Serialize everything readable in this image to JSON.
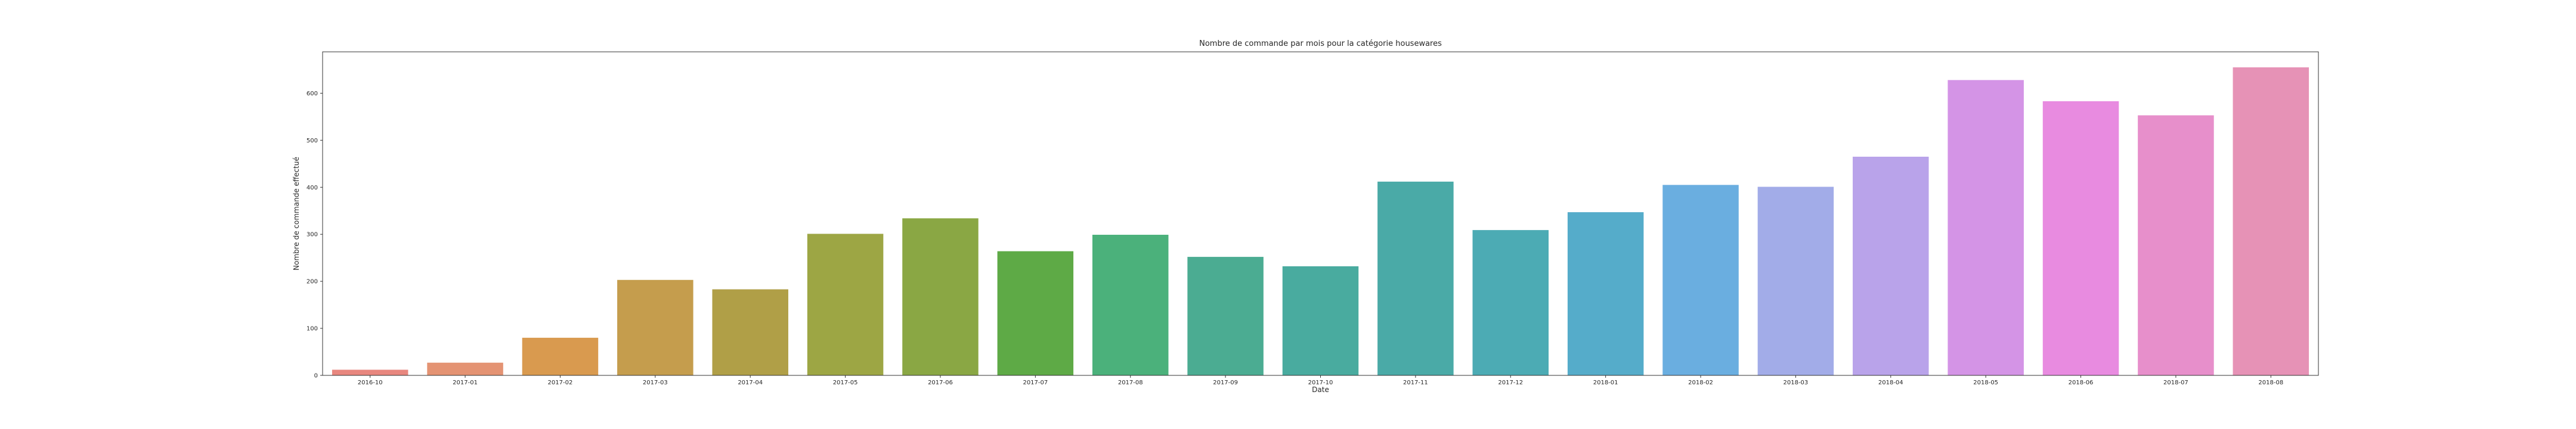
{
  "chart_data": {
    "type": "bar",
    "title": "Nombre de commande par mois pour la catégorie housewares",
    "xlabel": "Date",
    "ylabel": "Nombre de commande effectué",
    "categories": [
      "2016-10",
      "2017-01",
      "2017-02",
      "2017-03",
      "2017-04",
      "2017-05",
      "2017-06",
      "2017-07",
      "2017-08",
      "2017-09",
      "2017-10",
      "2017-11",
      "2017-12",
      "2018-01",
      "2018-02",
      "2018-03",
      "2018-04",
      "2018-05",
      "2018-06",
      "2018-07",
      "2018-08"
    ],
    "values": [
      12,
      27,
      80,
      203,
      183,
      301,
      334,
      264,
      299,
      252,
      232,
      412,
      309,
      347,
      405,
      401,
      465,
      628,
      583,
      553,
      655
    ],
    "ylim": [
      0,
      688
    ],
    "yticks": [
      0,
      100,
      200,
      300,
      400,
      500,
      600
    ],
    "colors": [
      "#e8877f",
      "#e49373",
      "#d99a4f",
      "#c59d4d",
      "#b09f47",
      "#9da644",
      "#8aa744",
      "#5eaa46",
      "#4bb17b",
      "#4bac92",
      "#49ab9f",
      "#4aaaa7",
      "#4cabb4",
      "#55acca",
      "#6aaee0",
      "#a2ace8",
      "#b9a3ea",
      "#d494e6",
      "#e88be0",
      "#e78fcb",
      "#e692b6"
    ],
    "grid": false,
    "legend": "none"
  }
}
